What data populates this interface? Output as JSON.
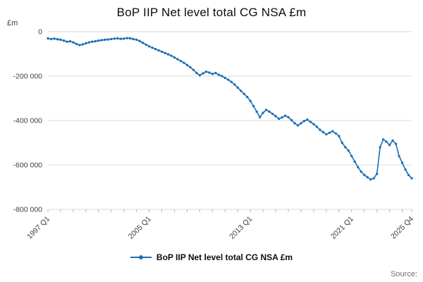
{
  "page": {
    "title": "BoP IIP Net level total CG NSA £m",
    "y_axis_unit": "£m",
    "legend_label": "BoP IIP Net level total CG NSA £m",
    "source_label": "Source:"
  },
  "chart_data": {
    "type": "line",
    "title": "BoP IIP Net level total CG NSA £m",
    "xlabel": "",
    "ylabel": "£m",
    "ylim": [
      -800000,
      0
    ],
    "y_ticks": [
      0,
      -200000,
      -400000,
      -600000,
      -800000
    ],
    "y_tick_labels": [
      "0",
      "-200 000",
      "-400 000",
      "-600 000",
      "-800 000"
    ],
    "x_tick_labels": [
      "1997 Q1",
      "2005 Q1",
      "2013 Q1",
      "2021 Q1",
      "2025 Q4"
    ],
    "x_tick_indices": [
      0,
      32,
      64,
      96,
      115
    ],
    "x_start": "1997 Q1",
    "x_end": "2025 Q4",
    "frequency": "quarterly",
    "legend_position": "bottom",
    "grid": true,
    "line_color": "#1d70b8",
    "grid_color": "#d9d9d9",
    "tick_color": "#b3b3b3",
    "series": [
      {
        "name": "BoP IIP Net level total CG NSA £m",
        "values": [
          -30000,
          -33000,
          -31000,
          -34000,
          -36000,
          -40000,
          -45000,
          -43000,
          -48000,
          -55000,
          -60000,
          -57000,
          -52000,
          -48000,
          -45000,
          -43000,
          -40000,
          -38000,
          -36000,
          -35000,
          -33000,
          -31000,
          -30000,
          -32000,
          -31000,
          -29000,
          -30000,
          -33000,
          -36000,
          -42000,
          -50000,
          -58000,
          -66000,
          -72000,
          -78000,
          -84000,
          -90000,
          -96000,
          -102000,
          -108000,
          -116000,
          -124000,
          -132000,
          -140000,
          -150000,
          -160000,
          -172000,
          -186000,
          -196000,
          -188000,
          -180000,
          -184000,
          -190000,
          -186000,
          -194000,
          -200000,
          -208000,
          -216000,
          -226000,
          -238000,
          -252000,
          -266000,
          -280000,
          -294000,
          -312000,
          -335000,
          -360000,
          -385000,
          -365000,
          -352000,
          -360000,
          -370000,
          -380000,
          -392000,
          -386000,
          -378000,
          -385000,
          -398000,
          -412000,
          -422000,
          -412000,
          -402000,
          -396000,
          -406000,
          -416000,
          -428000,
          -442000,
          -452000,
          -462000,
          -455000,
          -448000,
          -458000,
          -470000,
          -500000,
          -520000,
          -535000,
          -560000,
          -585000,
          -610000,
          -630000,
          -645000,
          -655000,
          -665000,
          -660000,
          -640000,
          -520000,
          -485000,
          -495000,
          -510000,
          -490000,
          -505000,
          -560000,
          -590000,
          -620000,
          -645000,
          -660000
        ]
      }
    ]
  }
}
